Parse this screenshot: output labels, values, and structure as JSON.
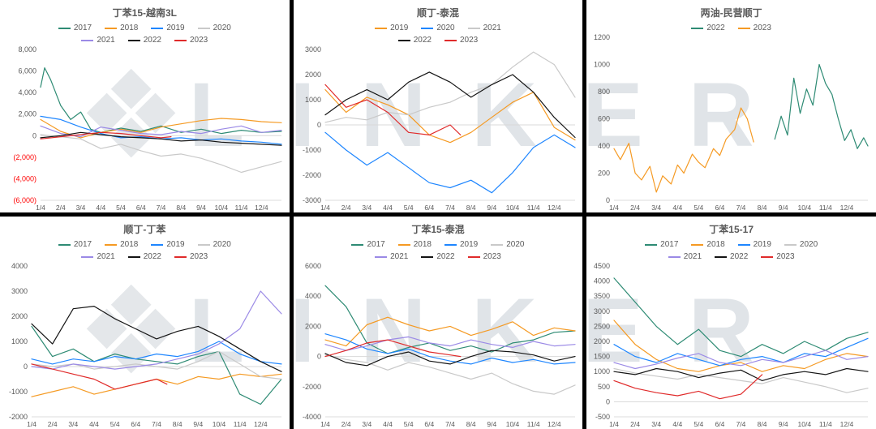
{
  "watermark": {
    "logo": "❖",
    "text": "LINKER"
  },
  "palette": {
    "teal": "#2E8B74",
    "orange": "#F59A23",
    "blue": "#1E86FF",
    "gray": "#C9C9C9",
    "purple": "#9B8AE6",
    "black": "#141414",
    "red": "#E02B2B"
  },
  "chart_data": [
    {
      "title": "丁苯15-越南3L",
      "type": "line",
      "x_labels": [
        "1/4",
        "2/4",
        "3/4",
        "4/4",
        "5/4",
        "6/4",
        "7/4",
        "8/4",
        "9/4",
        "10/4",
        "11/4",
        "12/4"
      ],
      "xlim": [
        1,
        13
      ],
      "ylim": [
        -6000,
        8000
      ],
      "negative_red": true,
      "yticks": [
        {
          "value": 8000,
          "label": "8,000"
        },
        {
          "value": 6000,
          "label": "6,000"
        },
        {
          "value": 4000,
          "label": "4,000"
        },
        {
          "value": 2000,
          "label": "2,000"
        },
        {
          "value": 0,
          "label": "0"
        },
        {
          "value": -2000,
          "label": "(2,000)"
        },
        {
          "value": -4000,
          "label": "(4,000)"
        },
        {
          "value": -6000,
          "label": "(6,000)"
        }
      ],
      "series": [
        {
          "name": "2017",
          "color": "#2E8B74",
          "x": [
            1,
            1.2,
            1.5,
            2,
            2.5,
            3,
            3.5,
            4,
            5,
            6,
            7,
            8,
            9,
            10,
            11,
            12,
            13
          ],
          "y": [
            4500,
            6300,
            5200,
            2800,
            1500,
            2200,
            600,
            300,
            700,
            400,
            900,
            300,
            600,
            200,
            500,
            300,
            400
          ]
        },
        {
          "name": "2018",
          "color": "#F59A23",
          "y": [
            1500,
            400,
            -200,
            300,
            600,
            300,
            800,
            1100,
            1400,
            1600,
            1500,
            1300,
            1200
          ]
        },
        {
          "name": "2019",
          "color": "#1E86FF",
          "y": [
            1800,
            1500,
            800,
            200,
            -200,
            -100,
            -300,
            -200,
            -400,
            -300,
            -500,
            -600,
            -800
          ]
        },
        {
          "name": "2020",
          "color": "#C9C9C9",
          "y": [
            100,
            -100,
            -300,
            -1200,
            -800,
            -1400,
            -1900,
            -1700,
            -2100,
            -2700,
            -3400,
            -2900,
            -2400
          ]
        },
        {
          "name": "2021",
          "color": "#9B8AE6",
          "y": [
            900,
            200,
            -100,
            800,
            500,
            200,
            100,
            400,
            200,
            600,
            900,
            300,
            500
          ]
        },
        {
          "name": "2022",
          "color": "#141414",
          "y": [
            -200,
            0,
            300,
            100,
            -100,
            -200,
            -300,
            -500,
            -400,
            -600,
            -700,
            -800,
            -900
          ]
        },
        {
          "name": "2023",
          "color": "#E02B2B",
          "x": [
            1,
            2,
            3,
            4,
            5,
            6,
            7,
            7.5
          ],
          "y": [
            -300,
            -100,
            100,
            300,
            200,
            0,
            -200,
            -100
          ]
        }
      ]
    },
    {
      "title": "顺丁-泰混",
      "type": "line",
      "x_labels": [
        "1/4",
        "2/4",
        "3/4",
        "4/4",
        "5/4",
        "6/4",
        "7/4",
        "8/4",
        "9/4",
        "10/4",
        "11/4",
        "12/4"
      ],
      "xlim": [
        1,
        13
      ],
      "ylim": [
        -3000,
        3000
      ],
      "negative_red": false,
      "yticks": [
        {
          "value": 3000,
          "label": "3000"
        },
        {
          "value": 2000,
          "label": "2000"
        },
        {
          "value": 1000,
          "label": "1000"
        },
        {
          "value": 0,
          "label": "0"
        },
        {
          "value": -1000,
          "label": "-1000"
        },
        {
          "value": -2000,
          "label": "-2000"
        },
        {
          "value": -3000,
          "label": "-3000"
        }
      ],
      "series": [
        {
          "name": "2019",
          "color": "#F59A23",
          "y": [
            1400,
            500,
            1100,
            800,
            400,
            -400,
            -700,
            -300,
            300,
            900,
            1300,
            -100,
            -600
          ]
        },
        {
          "name": "2020",
          "color": "#1E86FF",
          "y": [
            -300,
            -1000,
            -1600,
            -1100,
            -1700,
            -2300,
            -2500,
            -2200,
            -2700,
            -1900,
            -900,
            -400,
            -900
          ]
        },
        {
          "name": "2021",
          "color": "#C9C9C9",
          "y": [
            100,
            300,
            200,
            500,
            400,
            700,
            900,
            1300,
            1600,
            2300,
            2900,
            2400,
            1100
          ]
        },
        {
          "name": "2022",
          "color": "#141414",
          "y": [
            400,
            1000,
            1400,
            1000,
            1700,
            2100,
            1700,
            1100,
            1600,
            2000,
            1300,
            300,
            -500
          ]
        },
        {
          "name": "2023",
          "color": "#E02B2B",
          "x": [
            1,
            2,
            3,
            4,
            5,
            6,
            7,
            7.5
          ],
          "y": [
            1600,
            700,
            1000,
            500,
            -300,
            -400,
            0,
            -400
          ]
        }
      ]
    },
    {
      "title": "两油-民营顺丁",
      "type": "line",
      "x_labels": [
        "1/4",
        "2/4",
        "3/4",
        "4/4",
        "5/4",
        "6/4",
        "7/4",
        "8/4",
        "9/4",
        "10/4",
        "11/4",
        "12/4"
      ],
      "xlim": [
        1,
        13
      ],
      "ylim": [
        0,
        1200
      ],
      "negative_red": false,
      "yticks": [
        {
          "value": 1200,
          "label": "1200"
        },
        {
          "value": 1000,
          "label": "1000"
        },
        {
          "value": 800,
          "label": "800"
        },
        {
          "value": 600,
          "label": "600"
        },
        {
          "value": 400,
          "label": "400"
        },
        {
          "value": 200,
          "label": "200"
        },
        {
          "value": 0,
          "label": "0"
        }
      ],
      "series": [
        {
          "name": "2022",
          "color": "#2E8B74",
          "x": [
            8.6,
            8.9,
            9.2,
            9.5,
            9.8,
            10.1,
            10.4,
            10.7,
            11,
            11.3,
            11.6,
            11.9,
            12.2,
            12.5,
            12.8,
            13
          ],
          "y": [
            450,
            620,
            480,
            900,
            640,
            820,
            700,
            1000,
            860,
            780,
            600,
            440,
            520,
            380,
            460,
            400
          ]
        },
        {
          "name": "2023",
          "color": "#F59A23",
          "x": [
            1,
            1.3,
            1.7,
            2,
            2.3,
            2.7,
            3,
            3.3,
            3.7,
            4,
            4.3,
            4.7,
            5,
            5.3,
            5.7,
            6,
            6.3,
            6.7,
            7,
            7.3,
            7.6
          ],
          "y": [
            380,
            300,
            420,
            200,
            150,
            250,
            60,
            180,
            120,
            260,
            200,
            340,
            280,
            240,
            380,
            330,
            450,
            520,
            680,
            600,
            430
          ]
        }
      ]
    },
    {
      "title": "顺丁-丁苯",
      "type": "line",
      "x_labels": [
        "1/4",
        "2/4",
        "3/4",
        "4/4",
        "5/4",
        "6/4",
        "7/4",
        "8/4",
        "9/4",
        "10/4",
        "11/4",
        "12/4"
      ],
      "xlim": [
        1,
        13
      ],
      "ylim": [
        -2000,
        4000
      ],
      "negative_red": false,
      "yticks": [
        {
          "value": 4000,
          "label": "4000"
        },
        {
          "value": 3000,
          "label": "3000"
        },
        {
          "value": 2000,
          "label": "2000"
        },
        {
          "value": 1000,
          "label": "1000"
        },
        {
          "value": 0,
          "label": "0"
        },
        {
          "value": -1000,
          "label": "-1000"
        },
        {
          "value": -2000,
          "label": "-2000"
        }
      ],
      "series": [
        {
          "name": "2017",
          "color": "#2E8B74",
          "y": [
            1600,
            400,
            700,
            200,
            500,
            300,
            200,
            100,
            400,
            600,
            -1100,
            -1500,
            -500
          ]
        },
        {
          "name": "2018",
          "color": "#F59A23",
          "y": [
            -1200,
            -1000,
            -800,
            -1100,
            -900,
            -700,
            -500,
            -700,
            -400,
            -500,
            -300,
            -400,
            -300
          ]
        },
        {
          "name": "2019",
          "color": "#1E86FF",
          "y": [
            300,
            100,
            300,
            200,
            400,
            300,
            500,
            400,
            600,
            1000,
            500,
            200,
            100
          ]
        },
        {
          "name": "2020",
          "color": "#C9C9C9",
          "y": [
            100,
            0,
            100,
            -100,
            0,
            100,
            0,
            -100,
            200,
            600,
            100,
            -400,
            -500
          ]
        },
        {
          "name": "2021",
          "color": "#9B8AE6",
          "y": [
            0,
            -100,
            100,
            0,
            -100,
            0,
            100,
            300,
            500,
            900,
            1500,
            3000,
            2100
          ]
        },
        {
          "name": "2022",
          "color": "#141414",
          "y": [
            1700,
            900,
            2300,
            2400,
            1900,
            1500,
            1100,
            1400,
            1600,
            1200,
            700,
            200,
            -200
          ]
        },
        {
          "name": "2023",
          "color": "#E02B2B",
          "x": [
            1,
            2,
            3,
            4,
            5,
            6,
            7,
            7.5
          ],
          "y": [
            100,
            -100,
            -300,
            -500,
            -900,
            -700,
            -500,
            -700
          ]
        }
      ]
    },
    {
      "title": "丁苯15-泰混",
      "type": "line",
      "x_labels": [
        "1/4",
        "2/4",
        "3/4",
        "4/4",
        "5/4",
        "6/4",
        "7/4",
        "8/4",
        "9/4",
        "10/4",
        "11/4",
        "12/4"
      ],
      "xlim": [
        1,
        13
      ],
      "ylim": [
        -4000,
        6000
      ],
      "negative_red": false,
      "yticks": [
        {
          "value": 6000,
          "label": "6000"
        },
        {
          "value": 4000,
          "label": "4000"
        },
        {
          "value": 2000,
          "label": "2000"
        },
        {
          "value": 0,
          "label": "0"
        },
        {
          "value": -2000,
          "label": "-2000"
        },
        {
          "value": -4000,
          "label": "-4000"
        }
      ],
      "series": [
        {
          "name": "2017",
          "color": "#2E8B74",
          "y": [
            4700,
            3300,
            900,
            200,
            600,
            900,
            400,
            700,
            300,
            900,
            1100,
            1600,
            1700
          ]
        },
        {
          "name": "2018",
          "color": "#F59A23",
          "y": [
            1100,
            700,
            2100,
            2600,
            2100,
            1700,
            2000,
            1400,
            1800,
            2300,
            1400,
            1900,
            1700
          ]
        },
        {
          "name": "2019",
          "color": "#1E86FF",
          "y": [
            1500,
            1100,
            500,
            200,
            500,
            0,
            -300,
            -500,
            -100,
            -400,
            -200,
            -500,
            -400
          ]
        },
        {
          "name": "2020",
          "color": "#C9C9C9",
          "y": [
            100,
            -200,
            -400,
            -900,
            -400,
            -700,
            -1100,
            -1500,
            -1100,
            -1800,
            -2300,
            -2500,
            -1900
          ]
        },
        {
          "name": "2021",
          "color": "#9B8AE6",
          "y": [
            800,
            400,
            700,
            1100,
            1300,
            900,
            700,
            1100,
            800,
            600,
            1000,
            700,
            800
          ]
        },
        {
          "name": "2022",
          "color": "#141414",
          "y": [
            200,
            -400,
            -600,
            0,
            300,
            -300,
            -500,
            0,
            400,
            300,
            100,
            -300,
            0
          ]
        },
        {
          "name": "2023",
          "color": "#E02B2B",
          "x": [
            1,
            2,
            3,
            4,
            5,
            6,
            7,
            7.5
          ],
          "y": [
            0,
            400,
            900,
            1100,
            700,
            300,
            100,
            0
          ]
        }
      ]
    },
    {
      "title": "丁苯15-17",
      "type": "line",
      "x_labels": [
        "1/4",
        "2/4",
        "3/4",
        "4/4",
        "5/4",
        "6/4",
        "7/4",
        "8/4",
        "9/4",
        "10/4",
        "11/4",
        "12/4"
      ],
      "xlim": [
        1,
        13
      ],
      "ylim": [
        -500,
        4500
      ],
      "negative_red": false,
      "yticks": [
        {
          "value": 4500,
          "label": "4500"
        },
        {
          "value": 4000,
          "label": "4000"
        },
        {
          "value": 3500,
          "label": "3500"
        },
        {
          "value": 3000,
          "label": "3000"
        },
        {
          "value": 2500,
          "label": "2500"
        },
        {
          "value": 2000,
          "label": "2000"
        },
        {
          "value": 1500,
          "label": "1500"
        },
        {
          "value": 1000,
          "label": "1000"
        },
        {
          "value": 500,
          "label": "500"
        },
        {
          "value": 0,
          "label": "0"
        },
        {
          "value": -500,
          "label": "-500"
        }
      ],
      "series": [
        {
          "name": "2017",
          "color": "#2E8B74",
          "y": [
            4100,
            3300,
            2500,
            1900,
            2400,
            1700,
            1500,
            1900,
            1600,
            2000,
            1700,
            2100,
            2300
          ]
        },
        {
          "name": "2018",
          "color": "#F59A23",
          "y": [
            2700,
            1900,
            1400,
            1100,
            1000,
            1200,
            1300,
            1000,
            1200,
            1100,
            1400,
            1600,
            1500
          ]
        },
        {
          "name": "2019",
          "color": "#1E86FF",
          "y": [
            1900,
            1500,
            1300,
            1600,
            1400,
            1200,
            1400,
            1500,
            1300,
            1600,
            1500,
            1800,
            2100
          ]
        },
        {
          "name": "2020",
          "color": "#C9C9C9",
          "y": [
            1100,
            950,
            850,
            750,
            900,
            800,
            700,
            600,
            800,
            650,
            500,
            300,
            450
          ]
        },
        {
          "name": "2021",
          "color": "#9B8AE6",
          "y": [
            1300,
            1100,
            1250,
            1450,
            1600,
            1300,
            1200,
            1400,
            1300,
            1500,
            1700,
            1400,
            1500
          ]
        },
        {
          "name": "2022",
          "color": "#141414",
          "y": [
            1000,
            900,
            1100,
            1000,
            800,
            950,
            1050,
            700,
            900,
            1000,
            900,
            1100,
            1000
          ]
        },
        {
          "name": "2023",
          "color": "#E02B2B",
          "x": [
            1,
            2,
            3,
            4,
            5,
            6,
            7,
            8
          ],
          "y": [
            700,
            450,
            300,
            200,
            350,
            100,
            250,
            900
          ]
        }
      ]
    }
  ]
}
